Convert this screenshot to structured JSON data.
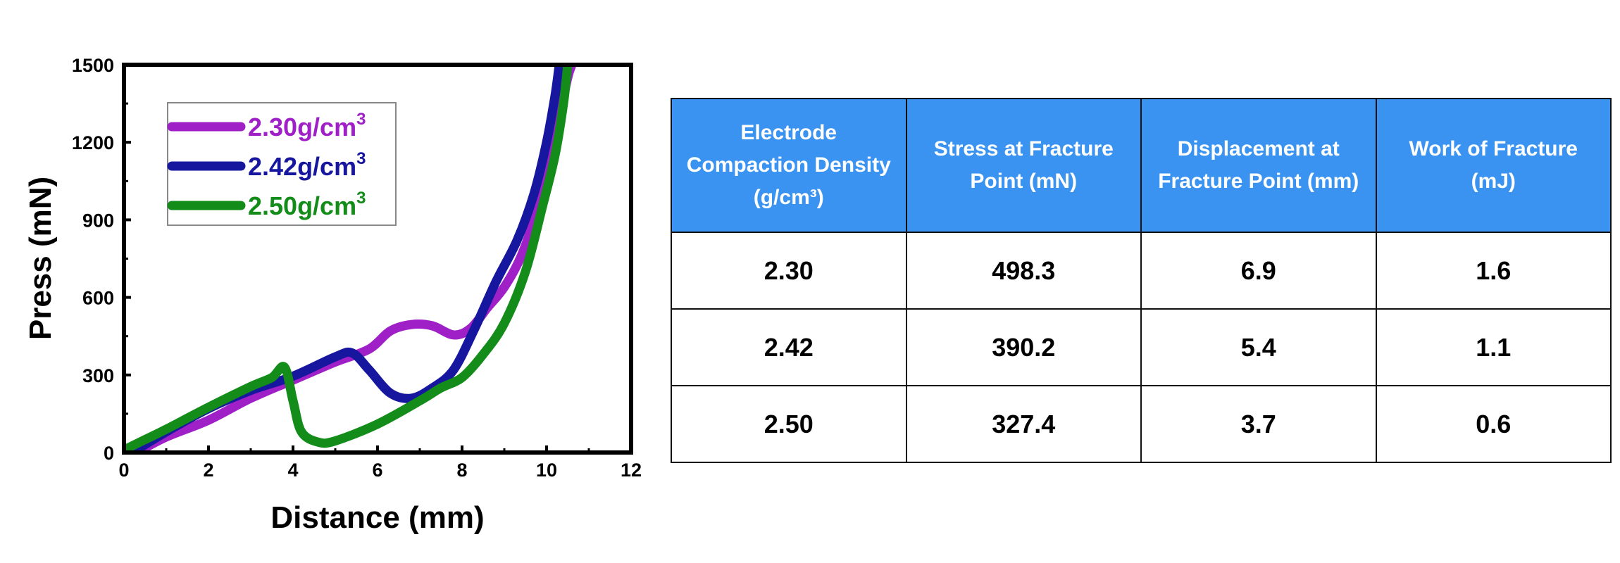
{
  "chart_data": {
    "type": "line",
    "xlabel": "Distance (mm)",
    "ylabel": "Press (mN)",
    "xlim": [
      0,
      12
    ],
    "ylim": [
      0,
      1500
    ],
    "xticks": [
      "0",
      "2",
      "4",
      "6",
      "8",
      "10",
      "12"
    ],
    "yticks": [
      "0",
      "300",
      "600",
      "900",
      "1200",
      "1500"
    ],
    "legend_position": "top-left",
    "series": [
      {
        "name": "2.30g/cm",
        "sup": "3",
        "color": "#a020c8",
        "points": [
          [
            0.3,
            0
          ],
          [
            1,
            60
          ],
          [
            2,
            125
          ],
          [
            3,
            210
          ],
          [
            4,
            280
          ],
          [
            5,
            350
          ],
          [
            5.8,
            400
          ],
          [
            6.3,
            470
          ],
          [
            6.8,
            495
          ],
          [
            7.3,
            490
          ],
          [
            7.8,
            455
          ],
          [
            8.2,
            480
          ],
          [
            8.6,
            560
          ],
          [
            9,
            640
          ],
          [
            9.4,
            760
          ],
          [
            9.8,
            950
          ],
          [
            10.1,
            1150
          ],
          [
            10.3,
            1300
          ],
          [
            10.5,
            1450
          ],
          [
            10.6,
            1500
          ]
        ]
      },
      {
        "name": "2.42g/cm",
        "sup": "3",
        "color": "#16169e",
        "points": [
          [
            0.2,
            0
          ],
          [
            1,
            80
          ],
          [
            2,
            170
          ],
          [
            3,
            240
          ],
          [
            4,
            295
          ],
          [
            5,
            370
          ],
          [
            5.4,
            385
          ],
          [
            5.8,
            320
          ],
          [
            6.3,
            230
          ],
          [
            6.8,
            210
          ],
          [
            7.3,
            250
          ],
          [
            7.8,
            320
          ],
          [
            8.3,
            480
          ],
          [
            8.8,
            660
          ],
          [
            9.3,
            820
          ],
          [
            9.7,
            1000
          ],
          [
            10,
            1200
          ],
          [
            10.2,
            1380
          ],
          [
            10.3,
            1500
          ]
        ]
      },
      {
        "name": "2.50g/cm",
        "sup": "3",
        "color": "#138c1a",
        "points": [
          [
            0,
            10
          ],
          [
            0.5,
            50
          ],
          [
            1,
            90
          ],
          [
            2,
            175
          ],
          [
            3,
            255
          ],
          [
            3.5,
            290
          ],
          [
            3.8,
            330
          ],
          [
            4,
            200
          ],
          [
            4.2,
            80
          ],
          [
            4.6,
            40
          ],
          [
            5,
            45
          ],
          [
            6,
            110
          ],
          [
            7,
            200
          ],
          [
            7.5,
            250
          ],
          [
            8,
            290
          ],
          [
            8.5,
            380
          ],
          [
            9,
            500
          ],
          [
            9.5,
            700
          ],
          [
            9.9,
            950
          ],
          [
            10.2,
            1150
          ],
          [
            10.4,
            1350
          ],
          [
            10.5,
            1500
          ]
        ]
      }
    ]
  },
  "table": {
    "headers": [
      "Electrode Compaction Density (g/cm³)",
      "Stress at Fracture Point (mN)",
      "Displacement at Fracture Point (mm)",
      "Work of Fracture (mJ)"
    ],
    "rows": [
      [
        "2.30",
        "498.3",
        "6.9",
        "1.6"
      ],
      [
        "2.42",
        "390.2",
        "5.4",
        "1.1"
      ],
      [
        "2.50",
        "327.4",
        "3.7",
        "0.6"
      ]
    ]
  }
}
